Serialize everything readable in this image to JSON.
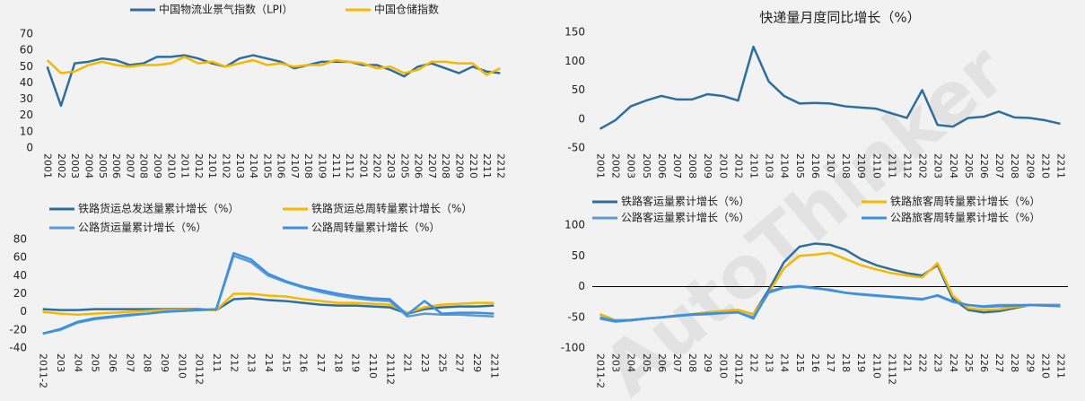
{
  "watermark": "AutoThinker",
  "chart_data": [
    {
      "type": "line",
      "categories": [
        "2001",
        "2002",
        "2003",
        "2004",
        "2005",
        "2006",
        "2007",
        "2008",
        "2009",
        "2010",
        "2011",
        "2012",
        "2101",
        "2102",
        "2103",
        "2104",
        "2105",
        "2106",
        "2107",
        "2108",
        "2109",
        "2111",
        "2112",
        "2201",
        "2202",
        "2203",
        "2205",
        "2206",
        "2207",
        "2208",
        "2209",
        "2210",
        "2211",
        "2212"
      ],
      "series": [
        {
          "name": "中国物流业景气指数（LPI）",
          "color": "#2e6e9e",
          "values": [
            50,
            26,
            52,
            53,
            55,
            54,
            51,
            52,
            56,
            56,
            57,
            55,
            52,
            50,
            55,
            57,
            55,
            53,
            49,
            51,
            53,
            53,
            53,
            51,
            51,
            48,
            44,
            50,
            52,
            49,
            46,
            50,
            47,
            46
          ]
        },
        {
          "name": "中国仓储指数",
          "color": "#f5b800",
          "values": [
            54,
            46,
            47,
            51,
            53,
            51,
            50,
            51,
            51,
            52,
            56,
            52,
            53,
            50,
            52,
            54,
            51,
            52,
            50,
            51,
            51,
            54,
            53,
            52,
            49,
            50,
            46,
            48,
            53,
            53,
            52,
            52,
            45,
            49
          ]
        }
      ],
      "ylim": [
        0,
        70
      ],
      "yticks": [
        0,
        10,
        20,
        30,
        40,
        50,
        60,
        70
      ]
    },
    {
      "type": "line",
      "title": "快递量月度同比增长（%）",
      "categories": [
        "2001",
        "2002",
        "2003",
        "2005",
        "2006",
        "2007",
        "2008",
        "2009",
        "2010",
        "2012",
        "2101",
        "2103",
        "2104",
        "2105",
        "2106",
        "2107",
        "2108",
        "2109",
        "2110",
        "2111",
        "2112",
        "2202",
        "2203",
        "2204",
        "2205",
        "2206",
        "2207",
        "2208",
        "2209",
        "2210",
        "2211"
      ],
      "series": [
        {
          "color": "#2e6e9e",
          "values": [
            -17,
            -2,
            22,
            32,
            40,
            34,
            34,
            43,
            40,
            32,
            125,
            65,
            40,
            27,
            28,
            27,
            22,
            20,
            18,
            10,
            2,
            50,
            -10,
            -13,
            2,
            4,
            13,
            3,
            2,
            -2,
            -8
          ]
        }
      ],
      "ylim": [
        -50,
        150
      ],
      "yticks": [
        -50,
        0,
        50,
        100,
        150
      ]
    },
    {
      "type": "line",
      "categories": [
        "2011-2",
        "203",
        "204",
        "205",
        "206",
        "207",
        "208",
        "209",
        "2010",
        "20112",
        "211",
        "212",
        "213",
        "214",
        "215",
        "216",
        "217",
        "218",
        "219",
        "2110",
        "21112",
        "221",
        "223",
        "225",
        "227",
        "229",
        "2211"
      ],
      "series": [
        {
          "name": "铁路货运总发送量累计增长（%）",
          "color": "#2e6e9e",
          "values": [
            3,
            2,
            2,
            3,
            3,
            3,
            3,
            3,
            3,
            3,
            2,
            14,
            15,
            13,
            12,
            10,
            8,
            7,
            7,
            6,
            5,
            -2,
            3,
            5,
            6,
            6,
            7
          ]
        },
        {
          "name": "铁路货运总周转量累计增长（%）",
          "color": "#f5b800",
          "values": [
            0,
            -2,
            -3,
            -2,
            -1,
            0,
            1,
            2,
            2,
            2,
            2,
            20,
            20,
            18,
            17,
            14,
            12,
            10,
            10,
            9,
            8,
            -1,
            5,
            8,
            9,
            10,
            10
          ]
        },
        {
          "name": "公路货运量累计增长（%）",
          "color": "#5b9bd5",
          "values": [
            -24,
            -20,
            -12,
            -8,
            -6,
            -4,
            -2,
            0,
            1,
            2,
            3,
            62,
            55,
            40,
            33,
            27,
            22,
            18,
            15,
            13,
            12,
            -5,
            -2,
            -3,
            -3,
            -4,
            -5
          ]
        },
        {
          "name": "公路周转量累计增长（%）",
          "color": "#3d8fe0",
          "values": [
            -24,
            -19,
            -11,
            -7,
            -5,
            -3,
            -2,
            0,
            1,
            2,
            3,
            65,
            58,
            42,
            34,
            28,
            24,
            20,
            17,
            15,
            14,
            -3,
            12,
            -2,
            -1,
            -1,
            -2
          ]
        }
      ],
      "ylim": [
        -40,
        80
      ],
      "yticks": [
        -40,
        -20,
        0,
        20,
        40,
        60,
        80
      ]
    },
    {
      "type": "line",
      "zero_line": true,
      "categories": [
        "2011-2",
        "203",
        "204",
        "205",
        "206",
        "207",
        "208",
        "209",
        "2010",
        "20112",
        "212",
        "213",
        "214",
        "215",
        "216",
        "217",
        "218",
        "219",
        "2110",
        "21112",
        "221",
        "222",
        "223",
        "224",
        "225",
        "226",
        "227",
        "228",
        "229",
        "2210",
        "2211"
      ],
      "series": [
        {
          "name": "铁路客运量累计增长（%）",
          "color": "#2e6e9e",
          "values": [
            -45,
            -55,
            -55,
            -52,
            -50,
            -48,
            -45,
            -42,
            -40,
            -38,
            -45,
            -5,
            40,
            65,
            70,
            68,
            60,
            45,
            35,
            28,
            22,
            18,
            35,
            -20,
            -38,
            -42,
            -40,
            -35,
            -30,
            -30,
            -30
          ]
        },
        {
          "name": "铁路旅客周转量累计增长（%）",
          "color": "#f5b800",
          "values": [
            -45,
            -55,
            -55,
            -52,
            -50,
            -48,
            -45,
            -42,
            -40,
            -38,
            -45,
            -10,
            30,
            50,
            52,
            55,
            45,
            35,
            28,
            22,
            18,
            15,
            38,
            -15,
            -35,
            -38,
            -37,
            -33,
            -30,
            -30,
            -30
          ]
        },
        {
          "name": "公路客运量累计增长（%）",
          "color": "#5b9bd5",
          "values": [
            -50,
            -55,
            -54,
            -52,
            -50,
            -48,
            -46,
            -45,
            -43,
            -42,
            -50,
            -10,
            -2,
            0,
            -3,
            -5,
            -10,
            -12,
            -14,
            -16,
            -18,
            -20,
            -15,
            -25,
            -30,
            -32,
            -30,
            -30,
            -30,
            -30,
            -30
          ]
        },
        {
          "name": "公路旅客周转量累计增长（%）",
          "color": "#3d8fe0",
          "values": [
            -52,
            -57,
            -55,
            -52,
            -50,
            -47,
            -45,
            -44,
            -43,
            -42,
            -52,
            -8,
            -1,
            1,
            -2,
            -6,
            -10,
            -13,
            -15,
            -17,
            -19,
            -21,
            -14,
            -24,
            -30,
            -33,
            -32,
            -31,
            -30,
            -31,
            -32
          ]
        }
      ],
      "ylim": [
        -100,
        100
      ],
      "yticks": [
        -100,
        -50,
        0,
        50,
        100
      ]
    }
  ]
}
